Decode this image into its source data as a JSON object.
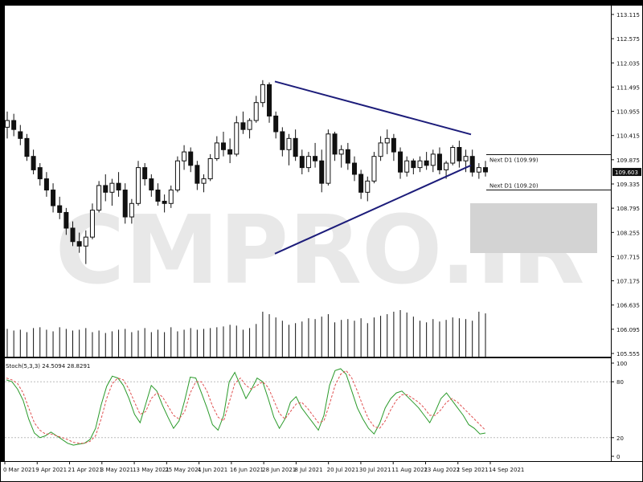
{
  "chart_data": [
    {
      "type": "candlestick",
      "ylim": [
        105.555,
        113.115
      ],
      "y_ticks": [
        "113.115",
        "112.575",
        "112.035",
        "111.495",
        "110.955",
        "110.415",
        "109.875",
        "109.335",
        "108.795",
        "108.255",
        "107.715",
        "107.175",
        "106.635",
        "106.095",
        "105.555"
      ],
      "current_price": "109.603",
      "price_labels": [
        {
          "text": "Next D1 (109.99)",
          "value": 109.99
        },
        {
          "text": "Next D1 (109.20)",
          "value": 109.2
        }
      ],
      "triangle": {
        "upper": [
          [
            0,
            111.62
          ],
          [
            1,
            110.44
          ]
        ],
        "lower": [
          [
            0,
            107.78
          ],
          [
            1,
            109.75
          ]
        ]
      },
      "watermark": "CMPRO.IR",
      "candles": [
        [
          110.6,
          110.95,
          110.35,
          110.75
        ],
        [
          110.75,
          110.9,
          110.4,
          110.55
        ],
        [
          110.5,
          110.65,
          110.2,
          110.35
        ],
        [
          110.35,
          110.45,
          109.85,
          109.95
        ],
        [
          109.95,
          110.1,
          109.55,
          109.65
        ],
        [
          109.7,
          109.8,
          109.3,
          109.45
        ],
        [
          109.45,
          109.6,
          109.05,
          109.2
        ],
        [
          109.2,
          109.35,
          108.7,
          108.85
        ],
        [
          108.85,
          109.05,
          108.55,
          108.7
        ],
        [
          108.7,
          108.8,
          108.2,
          108.35
        ],
        [
          108.35,
          108.5,
          107.95,
          108.05
        ],
        [
          108.05,
          108.25,
          107.8,
          107.95
        ],
        [
          107.95,
          108.3,
          107.55,
          108.15
        ],
        [
          108.15,
          108.9,
          108.1,
          108.75
        ],
        [
          108.75,
          109.4,
          108.7,
          109.3
        ],
        [
          109.3,
          109.55,
          108.95,
          109.15
        ],
        [
          109.15,
          109.45,
          108.85,
          109.35
        ],
        [
          109.35,
          109.6,
          109.05,
          109.2
        ],
        [
          109.2,
          109.35,
          108.45,
          108.6
        ],
        [
          108.6,
          109.0,
          108.45,
          108.9
        ],
        [
          108.9,
          109.85,
          108.85,
          109.7
        ],
        [
          109.7,
          109.8,
          109.3,
          109.45
        ],
        [
          109.45,
          109.55,
          109.05,
          109.2
        ],
        [
          109.2,
          109.35,
          108.85,
          108.95
        ],
        [
          108.95,
          109.1,
          108.7,
          108.9
        ],
        [
          108.9,
          109.3,
          108.8,
          109.2
        ],
        [
          109.2,
          109.95,
          109.15,
          109.85
        ],
        [
          109.85,
          110.2,
          109.65,
          110.05
        ],
        [
          110.05,
          110.15,
          109.6,
          109.75
        ],
        [
          109.75,
          109.85,
          109.2,
          109.35
        ],
        [
          109.35,
          109.55,
          109.15,
          109.45
        ],
        [
          109.45,
          110.0,
          109.4,
          109.9
        ],
        [
          109.9,
          110.4,
          109.85,
          110.25
        ],
        [
          110.25,
          110.5,
          109.95,
          110.1
        ],
        [
          110.1,
          110.35,
          109.8,
          110.0
        ],
        [
          110.0,
          110.85,
          109.95,
          110.7
        ],
        [
          110.7,
          110.95,
          110.45,
          110.55
        ],
        [
          110.55,
          110.8,
          110.35,
          110.75
        ],
        [
          110.75,
          111.3,
          110.7,
          111.15
        ],
        [
          111.15,
          111.65,
          111.05,
          111.55
        ],
        [
          111.55,
          111.6,
          110.7,
          110.85
        ],
        [
          110.85,
          110.95,
          110.35,
          110.5
        ],
        [
          110.5,
          110.6,
          109.95,
          110.1
        ],
        [
          110.1,
          110.45,
          109.75,
          110.35
        ],
        [
          110.35,
          110.55,
          109.85,
          109.95
        ],
        [
          109.95,
          110.1,
          109.55,
          109.7
        ],
        [
          109.7,
          110.05,
          109.6,
          109.95
        ],
        [
          109.95,
          110.25,
          109.7,
          109.85
        ],
        [
          109.85,
          110.1,
          109.15,
          109.35
        ],
        [
          109.35,
          110.55,
          109.3,
          110.45
        ],
        [
          110.45,
          110.5,
          109.85,
          110.0
        ],
        [
          110.0,
          110.2,
          109.7,
          110.1
        ],
        [
          110.1,
          110.25,
          109.65,
          109.8
        ],
        [
          109.8,
          109.95,
          109.4,
          109.55
        ],
        [
          109.55,
          109.65,
          109.0,
          109.15
        ],
        [
          109.15,
          109.5,
          108.95,
          109.4
        ],
        [
          109.4,
          110.05,
          109.35,
          109.95
        ],
        [
          109.95,
          110.4,
          109.85,
          110.25
        ],
        [
          110.25,
          110.55,
          110.0,
          110.35
        ],
        [
          110.35,
          110.45,
          109.85,
          110.05
        ],
        [
          110.05,
          110.15,
          109.45,
          109.6
        ],
        [
          109.6,
          109.95,
          109.5,
          109.85
        ],
        [
          109.85,
          109.9,
          109.55,
          109.7
        ],
        [
          109.7,
          109.95,
          109.6,
          109.85
        ],
        [
          109.85,
          110.05,
          109.65,
          109.75
        ],
        [
          109.75,
          110.1,
          109.6,
          110.0
        ],
        [
          110.0,
          110.15,
          109.55,
          109.65
        ],
        [
          109.65,
          109.85,
          109.45,
          109.8
        ],
        [
          109.8,
          110.2,
          109.75,
          110.15
        ],
        [
          110.15,
          110.3,
          109.7,
          109.85
        ],
        [
          109.85,
          110.1,
          109.6,
          109.95
        ],
        [
          109.95,
          110.1,
          109.5,
          109.6
        ],
        [
          109.6,
          109.8,
          109.45,
          109.7
        ],
        [
          109.7,
          109.85,
          109.5,
          109.603
        ]
      ],
      "volume": [
        0.34,
        0.32,
        0.33,
        0.3,
        0.35,
        0.36,
        0.33,
        0.31,
        0.36,
        0.34,
        0.32,
        0.33,
        0.35,
        0.3,
        0.32,
        0.29,
        0.31,
        0.33,
        0.34,
        0.3,
        0.32,
        0.35,
        0.3,
        0.33,
        0.3,
        0.36,
        0.31,
        0.33,
        0.35,
        0.33,
        0.34,
        0.35,
        0.36,
        0.37,
        0.39,
        0.38,
        0.33,
        0.35,
        0.4,
        0.55,
        0.52,
        0.48,
        0.44,
        0.39,
        0.41,
        0.43,
        0.47,
        0.46,
        0.49,
        0.52,
        0.42,
        0.45,
        0.46,
        0.44,
        0.47,
        0.41,
        0.48,
        0.5,
        0.52,
        0.55,
        0.57,
        0.54,
        0.49,
        0.44,
        0.42,
        0.46,
        0.43,
        0.45,
        0.48,
        0.47,
        0.46,
        0.44,
        0.55,
        0.53
      ],
      "x_labels": [
        "0 Mar 2021",
        "9 Apr 2021",
        "21 Apr 2021",
        "3 May 2021",
        "13 May 2021",
        "25 May 2021",
        "4 Jun 2021",
        "16 Jun 2021",
        "28 Jun 2021",
        "8 Jul 2021",
        "20 Jul 2021",
        "30 Jul 2021",
        "11 Aug 2021",
        "23 Aug 2021",
        "2 Sep 2021",
        "14 Sep 2021"
      ]
    },
    {
      "type": "line",
      "title": "Stoch(5,3,3) 24.5094 28.8291",
      "ylim": [
        0,
        100
      ],
      "y_ticks": [
        "100",
        "80",
        "20",
        "0"
      ],
      "series": [
        {
          "color": "#2a9a2a",
          "values": [
            82,
            80,
            72,
            60,
            40,
            25,
            20,
            22,
            26,
            22,
            18,
            14,
            12,
            13,
            14,
            18,
            30,
            55,
            75,
            86,
            84,
            76,
            62,
            45,
            36,
            56,
            76,
            70,
            55,
            42,
            30,
            38,
            60,
            85,
            84,
            68,
            52,
            34,
            28,
            44,
            80,
            90,
            76,
            62,
            72,
            84,
            80,
            62,
            42,
            30,
            40,
            58,
            64,
            52,
            44,
            36,
            28,
            44,
            76,
            92,
            94,
            88,
            70,
            52,
            40,
            30,
            24,
            35,
            52,
            62,
            68,
            70,
            64,
            58,
            52,
            44,
            36,
            48,
            62,
            68,
            60,
            52,
            44,
            34,
            30,
            24,
            25
          ]
        },
        {
          "color": "#e05050",
          "dash": true,
          "values": [
            84,
            82,
            78,
            68,
            52,
            36,
            28,
            24,
            24,
            22,
            20,
            18,
            15,
            14,
            14,
            16,
            22,
            40,
            62,
            78,
            84,
            82,
            72,
            58,
            45,
            48,
            62,
            68,
            64,
            54,
            44,
            40,
            48,
            68,
            80,
            80,
            70,
            54,
            42,
            38,
            58,
            78,
            84,
            76,
            72,
            76,
            80,
            74,
            60,
            46,
            40,
            48,
            56,
            58,
            52,
            44,
            36,
            38,
            56,
            76,
            88,
            92,
            84,
            70,
            54,
            40,
            32,
            30,
            38,
            50,
            60,
            66,
            66,
            62,
            58,
            52,
            44,
            44,
            50,
            58,
            62,
            58,
            52,
            46,
            40,
            34,
            28
          ]
        }
      ],
      "x_labels": [
        "0 Mar 2021",
        "9 Apr 2021",
        "21 Apr 2021",
        "3 May 2021",
        "13 May 2021",
        "25 May 2021",
        "4 Jun 2021",
        "16 Jun 2021",
        "28 Jun 2021",
        "8 Jul 2021",
        "20 Jul 2021",
        "30 Jul 2021",
        "11 Aug 2021",
        "23 Aug 2021",
        "2 Sep 2021",
        "14 Sep 2021"
      ]
    }
  ]
}
